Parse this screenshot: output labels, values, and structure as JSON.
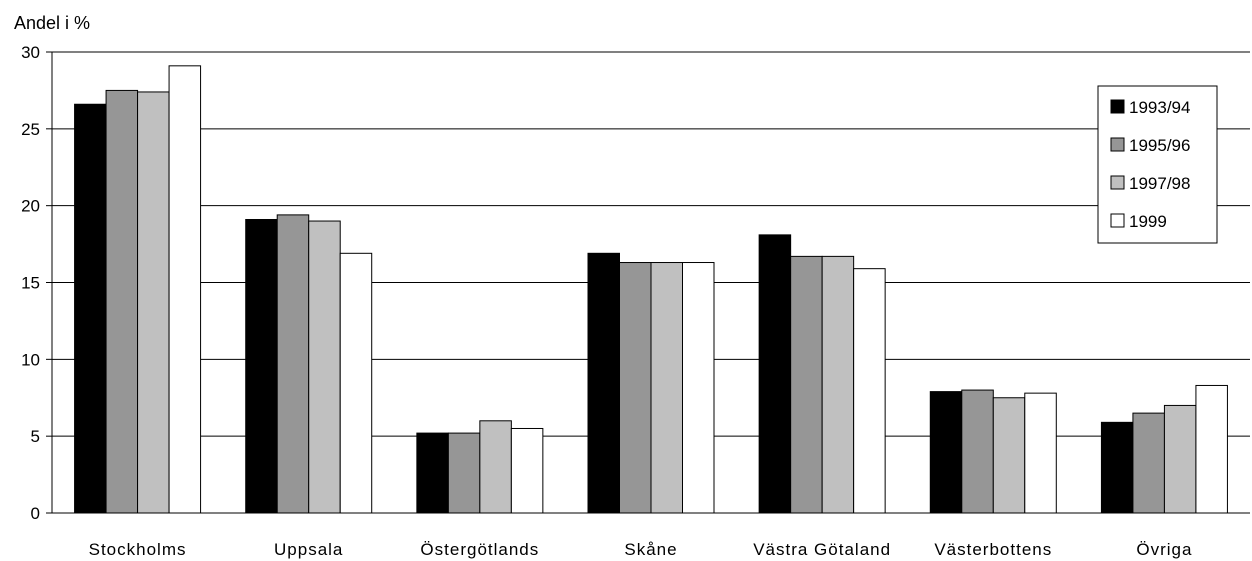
{
  "chart_data": {
    "type": "bar",
    "ylabel": "Andel i %",
    "ylim": [
      0,
      30
    ],
    "yticks": [
      "0",
      "5",
      "10",
      "15",
      "20",
      "25",
      "30"
    ],
    "grid": true,
    "legend_position": "top-right",
    "categories": [
      "Stockholms",
      "Uppsala",
      "Östergötlands",
      "Skåne",
      "Västra Götaland",
      "Västerbottens",
      "Övriga"
    ],
    "series": [
      {
        "name": "1993/94",
        "color": "#000000",
        "values": [
          26.6,
          19.1,
          5.2,
          16.9,
          18.1,
          7.9,
          5.9
        ]
      },
      {
        "name": "1995/96",
        "color": "#969696",
        "values": [
          27.5,
          19.4,
          5.2,
          16.3,
          16.7,
          8.0,
          6.5
        ]
      },
      {
        "name": "1997/98",
        "color": "#c0c0c0",
        "values": [
          27.4,
          19.0,
          6.0,
          16.3,
          16.7,
          7.5,
          7.0
        ]
      },
      {
        "name": "1999",
        "color": "#ffffff",
        "values": [
          29.1,
          16.9,
          5.5,
          16.3,
          15.9,
          7.8,
          8.3
        ]
      }
    ]
  }
}
